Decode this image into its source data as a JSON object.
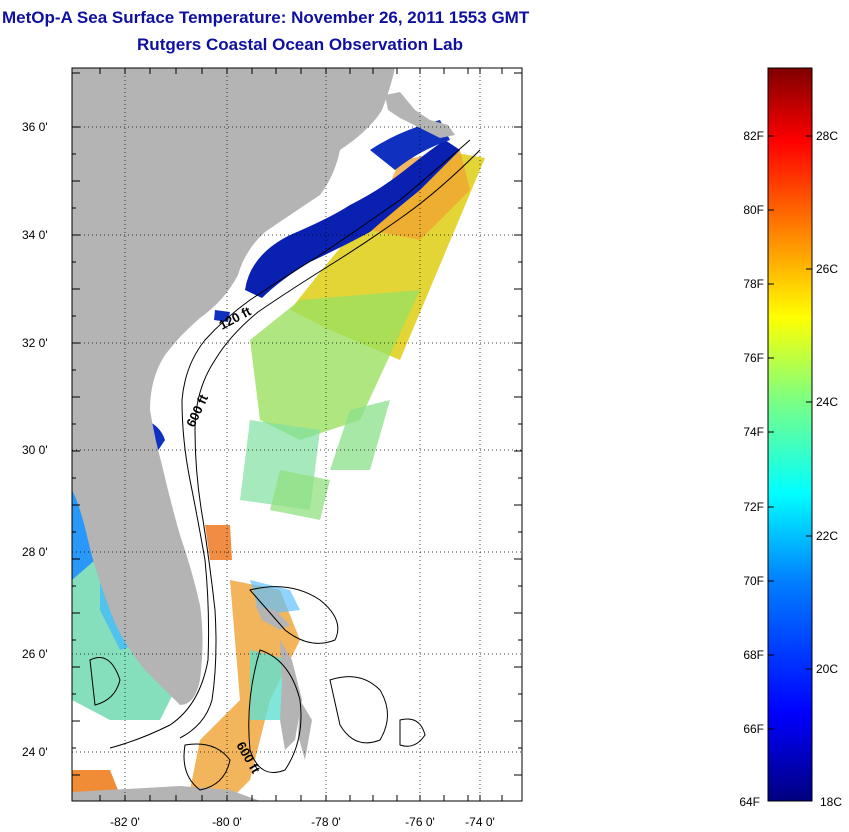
{
  "titles": {
    "line1": "MetOp-A Sea Surface Temperature:  November 26, 2011 1553 GMT",
    "line2": "Rutgers Coastal Ocean Observation Lab"
  },
  "map": {
    "lat_ticks": [
      "36 0'",
      "34 0'",
      "32 0'",
      "30 0'",
      "28 0'",
      "26 0'",
      "24 0'"
    ],
    "lon_ticks": [
      "-82 0'",
      "-80 0'",
      "-78 0'",
      "-76 0'",
      "-74 0'"
    ],
    "contour_labels": [
      "120 ft",
      "600 ft",
      "600 ft"
    ],
    "colors": {
      "land": "#b4b4b4",
      "ocean_nodata": "#ffffff",
      "grid": "#000000"
    }
  },
  "colorbar": {
    "fahrenheit_labels": [
      "82F",
      "80F",
      "78F",
      "76F",
      "74F",
      "72F",
      "70F",
      "68F",
      "66F",
      "64F"
    ],
    "celsius_labels": [
      "28C",
      "26C",
      "24C",
      "22C",
      "20C",
      "18C"
    ],
    "colormap": [
      "#00007f",
      "#0000ff",
      "#007fff",
      "#00ffff",
      "#7fff7f",
      "#ffff00",
      "#ff7f00",
      "#ff0000",
      "#7f0000"
    ]
  }
}
